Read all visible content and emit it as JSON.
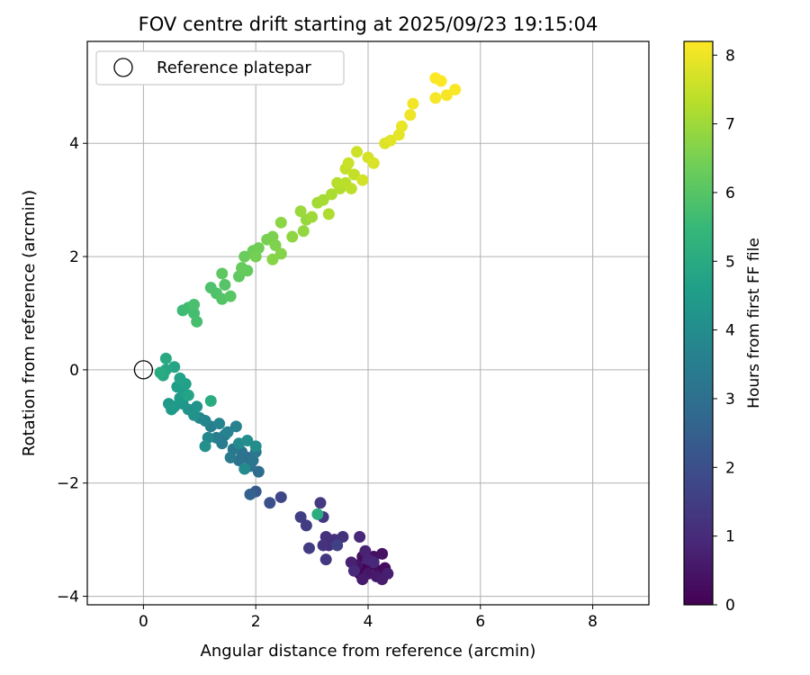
{
  "chart_data": {
    "type": "scatter",
    "title": "FOV centre drift starting at 2025/09/23 19:15:04",
    "xlabel": "Angular distance from reference (arcmin)",
    "ylabel": "Rotation from reference (arcmin)",
    "xlim": [
      -1,
      9
    ],
    "ylim": [
      -4.15,
      5.8
    ],
    "xticks": [
      0,
      2,
      4,
      6,
      8
    ],
    "yticks": [
      -4,
      -2,
      0,
      2,
      4
    ],
    "grid": true,
    "legend": {
      "placement": "top-left",
      "entries": [
        "Reference platepar"
      ]
    },
    "reference_point": {
      "name": "Reference platepar",
      "x": 0,
      "y": 0
    },
    "colorbar": {
      "label": "Hours from first FF file",
      "range": [
        0,
        8.2
      ],
      "ticks": [
        0,
        1,
        2,
        3,
        4,
        5,
        6,
        7,
        8
      ],
      "colormap": "viridis"
    },
    "points": [
      {
        "x": 3.85,
        "y": -3.6,
        "h": 0.05
      },
      {
        "x": 3.95,
        "y": -3.5,
        "h": 0.1
      },
      {
        "x": 4.05,
        "y": -3.45,
        "h": 0.15
      },
      {
        "x": 4.2,
        "y": -3.55,
        "h": 0.2
      },
      {
        "x": 4.3,
        "y": -3.5,
        "h": 0.25
      },
      {
        "x": 3.9,
        "y": -3.3,
        "h": 0.3
      },
      {
        "x": 4.1,
        "y": -3.3,
        "h": 0.35
      },
      {
        "x": 4.25,
        "y": -3.25,
        "h": 0.4
      },
      {
        "x": 3.8,
        "y": -3.45,
        "h": 0.45
      },
      {
        "x": 4.0,
        "y": -3.6,
        "h": 0.5
      },
      {
        "x": 4.15,
        "y": -3.65,
        "h": 0.55
      },
      {
        "x": 3.9,
        "y": -3.7,
        "h": 0.6
      },
      {
        "x": 4.25,
        "y": -3.7,
        "h": 0.65
      },
      {
        "x": 4.35,
        "y": -3.6,
        "h": 0.7
      },
      {
        "x": 3.7,
        "y": -3.4,
        "h": 0.75
      },
      {
        "x": 3.95,
        "y": -3.2,
        "h": 0.8
      },
      {
        "x": 4.0,
        "y": -3.35,
        "h": 0.85
      },
      {
        "x": 3.85,
        "y": -2.95,
        "h": 0.9
      },
      {
        "x": 4.1,
        "y": -3.4,
        "h": 0.95
      },
      {
        "x": 3.75,
        "y": -3.55,
        "h": 1.0
      },
      {
        "x": 3.3,
        "y": -3.1,
        "h": 1.05
      },
      {
        "x": 3.4,
        "y": -3.0,
        "h": 1.1
      },
      {
        "x": 3.25,
        "y": -2.95,
        "h": 1.15
      },
      {
        "x": 3.55,
        "y": -2.95,
        "h": 1.2
      },
      {
        "x": 3.2,
        "y": -3.1,
        "h": 1.25
      },
      {
        "x": 3.25,
        "y": -3.35,
        "h": 1.3
      },
      {
        "x": 3.2,
        "y": -2.6,
        "h": 1.35
      },
      {
        "x": 3.15,
        "y": -2.35,
        "h": 1.4
      },
      {
        "x": 2.95,
        "y": -3.15,
        "h": 1.45
      },
      {
        "x": 2.9,
        "y": -2.75,
        "h": 1.5
      },
      {
        "x": 2.8,
        "y": -2.6,
        "h": 1.55
      },
      {
        "x": 3.45,
        "y": -3.1,
        "h": 1.6
      },
      {
        "x": 2.45,
        "y": -2.25,
        "h": 1.75
      },
      {
        "x": 2.25,
        "y": -2.35,
        "h": 2.0
      },
      {
        "x": 2.0,
        "y": -2.15,
        "h": 2.3
      },
      {
        "x": 1.9,
        "y": -2.2,
        "h": 2.6
      },
      {
        "x": 2.05,
        "y": -1.8,
        "h": 2.9
      },
      {
        "x": 1.85,
        "y": -1.55,
        "h": 3.0
      },
      {
        "x": 1.9,
        "y": -1.7,
        "h": 3.05
      },
      {
        "x": 1.7,
        "y": -1.6,
        "h": 3.1
      },
      {
        "x": 1.75,
        "y": -1.45,
        "h": 3.15
      },
      {
        "x": 1.95,
        "y": -1.6,
        "h": 3.2
      },
      {
        "x": 2.0,
        "y": -1.45,
        "h": 3.25
      },
      {
        "x": 1.6,
        "y": -1.4,
        "h": 3.3
      },
      {
        "x": 1.55,
        "y": -1.55,
        "h": 3.35
      },
      {
        "x": 1.4,
        "y": -1.3,
        "h": 3.4
      },
      {
        "x": 1.45,
        "y": -1.15,
        "h": 3.45
      },
      {
        "x": 1.3,
        "y": -1.2,
        "h": 3.5
      },
      {
        "x": 1.2,
        "y": -1.0,
        "h": 3.55
      },
      {
        "x": 1.65,
        "y": -1.0,
        "h": 3.6
      },
      {
        "x": 1.5,
        "y": -1.1,
        "h": 3.65
      },
      {
        "x": 1.35,
        "y": -0.95,
        "h": 3.7
      },
      {
        "x": 1.1,
        "y": -0.9,
        "h": 3.75
      },
      {
        "x": 1.0,
        "y": -0.85,
        "h": 3.8
      },
      {
        "x": 1.15,
        "y": -1.2,
        "h": 3.85
      },
      {
        "x": 1.7,
        "y": -1.3,
        "h": 3.9
      },
      {
        "x": 1.8,
        "y": -1.75,
        "h": 3.95
      },
      {
        "x": 2.0,
        "y": -1.35,
        "h": 4.0
      },
      {
        "x": 1.85,
        "y": -1.25,
        "h": 4.05
      },
      {
        "x": 1.1,
        "y": -1.35,
        "h": 4.1
      },
      {
        "x": 0.9,
        "y": -0.8,
        "h": 4.15
      },
      {
        "x": 0.8,
        "y": -0.7,
        "h": 4.2
      },
      {
        "x": 0.95,
        "y": -0.65,
        "h": 4.25
      },
      {
        "x": 0.7,
        "y": -0.6,
        "h": 4.3
      },
      {
        "x": 0.55,
        "y": -0.65,
        "h": 4.35
      },
      {
        "x": 0.45,
        "y": -0.6,
        "h": 4.4
      },
      {
        "x": 0.5,
        "y": -0.7,
        "h": 4.45
      },
      {
        "x": 0.65,
        "y": -0.5,
        "h": 4.5
      },
      {
        "x": 0.7,
        "y": -0.35,
        "h": 4.55
      },
      {
        "x": 0.6,
        "y": -0.3,
        "h": 4.6
      },
      {
        "x": 0.75,
        "y": -0.25,
        "h": 4.65
      },
      {
        "x": 0.65,
        "y": -0.15,
        "h": 4.7
      },
      {
        "x": 0.8,
        "y": -0.45,
        "h": 4.75
      },
      {
        "x": 0.55,
        "y": 0.05,
        "h": 4.8
      },
      {
        "x": 0.4,
        "y": 0.0,
        "h": 4.85
      },
      {
        "x": 0.35,
        "y": -0.1,
        "h": 4.9
      },
      {
        "x": 0.4,
        "y": 0.2,
        "h": 4.95
      },
      {
        "x": 0.3,
        "y": -0.05,
        "h": 5.0
      },
      {
        "x": 1.2,
        "y": -0.55,
        "h": 5.05
      },
      {
        "x": 3.1,
        "y": -2.55,
        "h": 5.1
      },
      {
        "x": 0.7,
        "y": 1.05,
        "h": 5.6
      },
      {
        "x": 0.8,
        "y": 1.1,
        "h": 5.65
      },
      {
        "x": 0.9,
        "y": 1.0,
        "h": 5.7
      },
      {
        "x": 0.95,
        "y": 0.85,
        "h": 5.75
      },
      {
        "x": 0.9,
        "y": 1.15,
        "h": 5.8
      },
      {
        "x": 1.2,
        "y": 1.45,
        "h": 5.85
      },
      {
        "x": 1.3,
        "y": 1.35,
        "h": 5.9
      },
      {
        "x": 1.4,
        "y": 1.25,
        "h": 5.95
      },
      {
        "x": 1.45,
        "y": 1.5,
        "h": 6.0
      },
      {
        "x": 1.55,
        "y": 1.3,
        "h": 6.05
      },
      {
        "x": 1.4,
        "y": 1.7,
        "h": 6.1
      },
      {
        "x": 1.7,
        "y": 1.65,
        "h": 6.15
      },
      {
        "x": 1.85,
        "y": 1.75,
        "h": 6.2
      },
      {
        "x": 1.75,
        "y": 1.8,
        "h": 6.25
      },
      {
        "x": 1.8,
        "y": 2.0,
        "h": 6.3
      },
      {
        "x": 1.95,
        "y": 2.1,
        "h": 6.35
      },
      {
        "x": 2.05,
        "y": 2.15,
        "h": 6.4
      },
      {
        "x": 2.0,
        "y": 2.0,
        "h": 6.45
      },
      {
        "x": 2.2,
        "y": 2.3,
        "h": 6.5
      },
      {
        "x": 2.3,
        "y": 2.35,
        "h": 6.55
      },
      {
        "x": 2.35,
        "y": 2.2,
        "h": 6.6
      },
      {
        "x": 2.45,
        "y": 2.05,
        "h": 6.65
      },
      {
        "x": 2.3,
        "y": 1.95,
        "h": 6.7
      },
      {
        "x": 2.45,
        "y": 2.6,
        "h": 6.75
      },
      {
        "x": 2.65,
        "y": 2.35,
        "h": 6.8
      },
      {
        "x": 2.85,
        "y": 2.45,
        "h": 6.85
      },
      {
        "x": 2.9,
        "y": 2.65,
        "h": 6.9
      },
      {
        "x": 2.8,
        "y": 2.8,
        "h": 6.95
      },
      {
        "x": 3.0,
        "y": 2.7,
        "h": 7.0
      },
      {
        "x": 3.1,
        "y": 2.95,
        "h": 7.05
      },
      {
        "x": 3.2,
        "y": 3.0,
        "h": 7.1
      },
      {
        "x": 3.35,
        "y": 3.1,
        "h": 7.15
      },
      {
        "x": 3.3,
        "y": 2.75,
        "h": 7.2
      },
      {
        "x": 3.5,
        "y": 3.2,
        "h": 7.25
      },
      {
        "x": 3.45,
        "y": 3.3,
        "h": 7.3
      },
      {
        "x": 3.6,
        "y": 3.3,
        "h": 7.35
      },
      {
        "x": 3.7,
        "y": 3.2,
        "h": 7.4
      },
      {
        "x": 3.75,
        "y": 3.45,
        "h": 7.45
      },
      {
        "x": 3.6,
        "y": 3.55,
        "h": 7.5
      },
      {
        "x": 3.65,
        "y": 3.65,
        "h": 7.55
      },
      {
        "x": 3.8,
        "y": 3.85,
        "h": 7.6
      },
      {
        "x": 3.9,
        "y": 3.35,
        "h": 7.65
      },
      {
        "x": 4.0,
        "y": 3.75,
        "h": 7.7
      },
      {
        "x": 4.1,
        "y": 3.65,
        "h": 7.75
      },
      {
        "x": 4.3,
        "y": 4.0,
        "h": 7.8
      },
      {
        "x": 4.4,
        "y": 4.05,
        "h": 7.85
      },
      {
        "x": 4.55,
        "y": 4.15,
        "h": 7.9
      },
      {
        "x": 4.6,
        "y": 4.3,
        "h": 7.95
      },
      {
        "x": 4.75,
        "y": 4.5,
        "h": 8.0
      },
      {
        "x": 4.8,
        "y": 4.7,
        "h": 8.05
      },
      {
        "x": 5.2,
        "y": 4.8,
        "h": 8.1
      },
      {
        "x": 5.4,
        "y": 4.85,
        "h": 8.12
      },
      {
        "x": 5.55,
        "y": 4.95,
        "h": 8.15
      },
      {
        "x": 5.3,
        "y": 5.1,
        "h": 8.17
      },
      {
        "x": 5.2,
        "y": 5.15,
        "h": 8.2
      }
    ]
  }
}
